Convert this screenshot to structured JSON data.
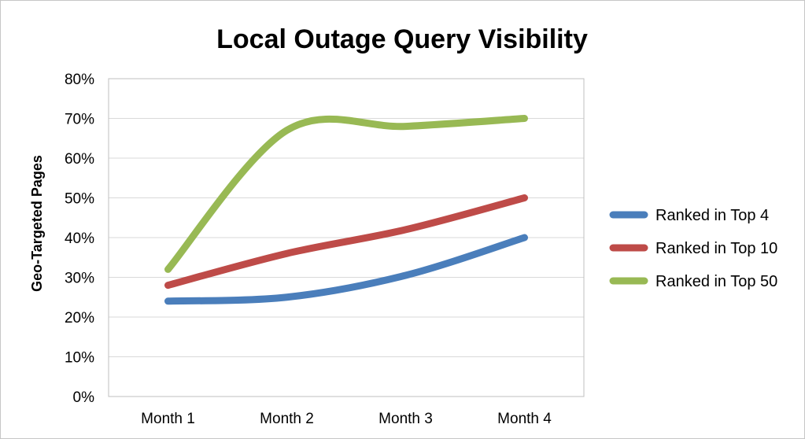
{
  "chart_data": {
    "type": "line",
    "title": "Local Outage Query Visibility",
    "ylabel": "Geo-Targeted Pages",
    "xlabel": "",
    "categories": [
      "Month 1",
      "Month 2",
      "Month 3",
      "Month 4"
    ],
    "ylim": [
      0,
      80
    ],
    "yticks": [
      0,
      10,
      20,
      30,
      40,
      50,
      60,
      70,
      80
    ],
    "ytick_labels": [
      "0%",
      "10%",
      "20%",
      "30%",
      "40%",
      "50%",
      "60%",
      "70%",
      "80%"
    ],
    "grid": true,
    "smooth": true,
    "legend_position": "right",
    "series": [
      {
        "name": "Ranked in Top 4",
        "color": "#4a7ebb",
        "values": [
          24,
          25,
          30.5,
          40
        ]
      },
      {
        "name": "Ranked in Top 10",
        "color": "#be4b48",
        "values": [
          28,
          36,
          42,
          50
        ]
      },
      {
        "name": "Ranked in Top 50",
        "color": "#98b954",
        "values": [
          32,
          67,
          68,
          70
        ]
      }
    ]
  }
}
